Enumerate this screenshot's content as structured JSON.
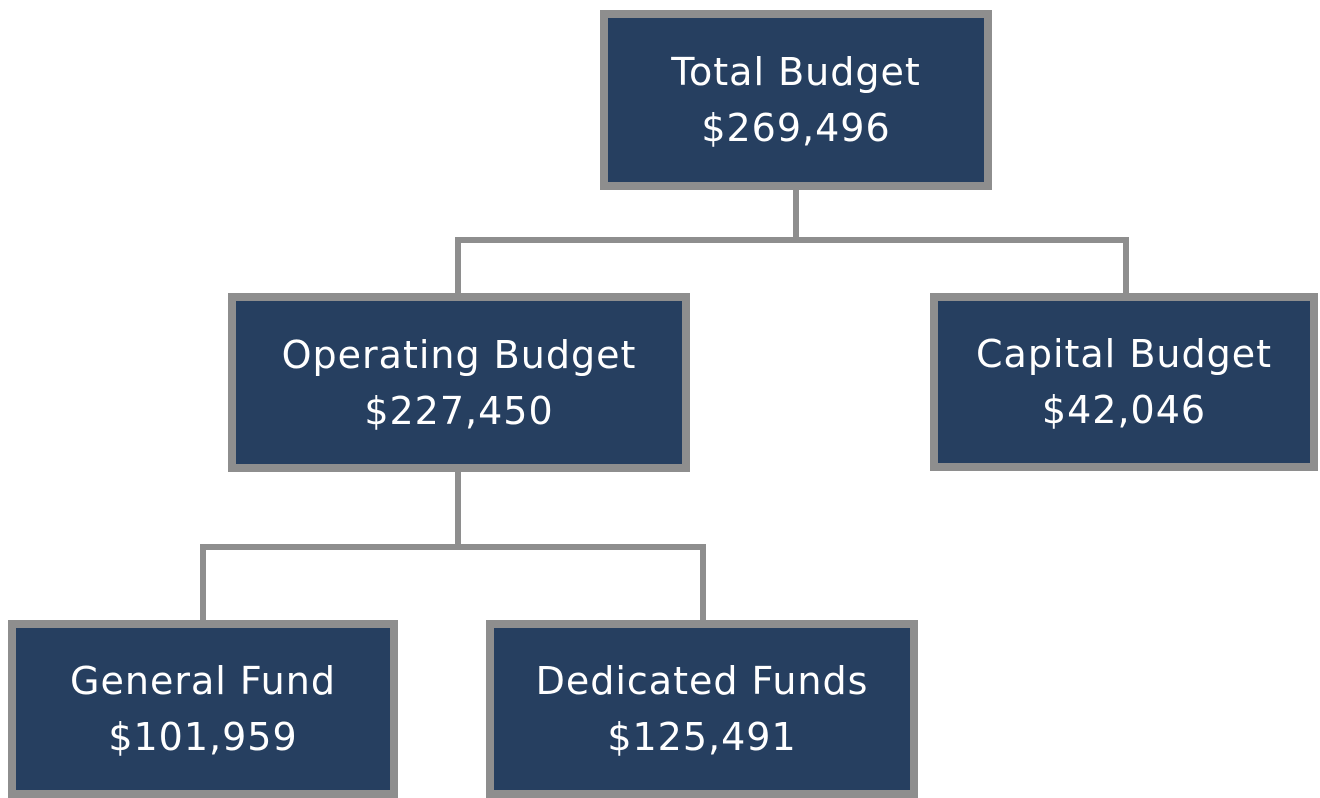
{
  "nodes": [
    {
      "label": "Total Budget",
      "value": "$269,496"
    },
    {
      "label": "Operating Budget",
      "value": "$227,450"
    },
    {
      "label": "Capital Budget",
      "value": "$42,046"
    },
    {
      "label": "General Fund",
      "value": "$101,959"
    },
    {
      "label": "Dedicated Funds",
      "value": "$125,491"
    }
  ]
}
